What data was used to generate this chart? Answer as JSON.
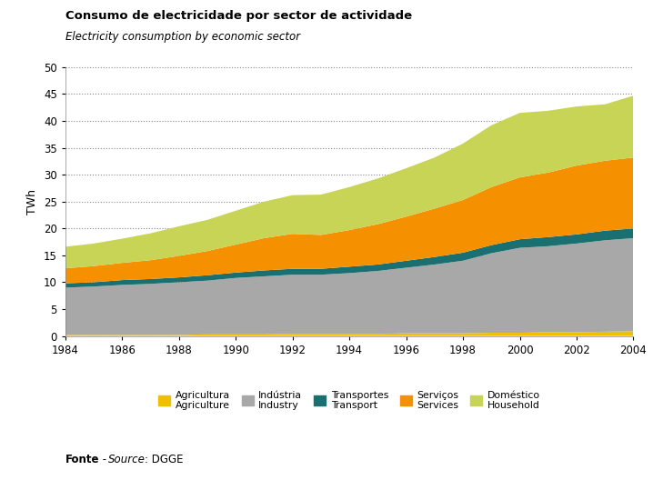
{
  "title": "Consumo de electricidade por sector de actividade",
  "subtitle": "Electricity consumption by economic sector",
  "ylabel": "TWh",
  "source_name": "DGGE",
  "years": [
    1984,
    1985,
    1986,
    1987,
    1988,
    1989,
    1990,
    1991,
    1992,
    1993,
    1994,
    1995,
    1996,
    1997,
    1998,
    1999,
    2000,
    2001,
    2002,
    2003,
    2004
  ],
  "agriculture": [
    0.2,
    0.2,
    0.2,
    0.2,
    0.2,
    0.3,
    0.3,
    0.3,
    0.4,
    0.4,
    0.4,
    0.4,
    0.5,
    0.5,
    0.5,
    0.6,
    0.6,
    0.7,
    0.7,
    0.8,
    0.9
  ],
  "industry": [
    8.8,
    9.0,
    9.3,
    9.5,
    9.8,
    10.0,
    10.5,
    10.8,
    11.0,
    11.0,
    11.3,
    11.7,
    12.2,
    12.8,
    13.5,
    14.8,
    15.8,
    16.0,
    16.5,
    17.0,
    17.3
  ],
  "transport": [
    0.8,
    0.8,
    0.9,
    0.9,
    0.9,
    1.0,
    1.0,
    1.1,
    1.1,
    1.1,
    1.2,
    1.2,
    1.3,
    1.4,
    1.5,
    1.5,
    1.6,
    1.7,
    1.7,
    1.8,
    1.8
  ],
  "services": [
    2.8,
    3.0,
    3.2,
    3.5,
    4.0,
    4.5,
    5.2,
    6.0,
    6.5,
    6.3,
    6.8,
    7.5,
    8.2,
    9.0,
    9.8,
    10.8,
    11.5,
    12.0,
    12.8,
    13.0,
    13.2
  ],
  "household": [
    4.0,
    4.2,
    4.5,
    5.0,
    5.5,
    5.8,
    6.3,
    6.8,
    7.2,
    7.5,
    8.0,
    8.5,
    9.0,
    9.5,
    10.5,
    11.5,
    12.0,
    11.5,
    11.0,
    10.5,
    11.5
  ],
  "color_agriculture": "#f0c000",
  "color_industry": "#a8a8a8",
  "color_transport": "#1a7070",
  "color_services": "#f59000",
  "color_household": "#c8d455",
  "ylim": [
    0,
    50
  ],
  "yticks": [
    0,
    5,
    10,
    15,
    20,
    25,
    30,
    35,
    40,
    45,
    50
  ],
  "xticks": [
    1984,
    1986,
    1988,
    1990,
    1992,
    1994,
    1996,
    1998,
    2000,
    2002,
    2004
  ],
  "legend_labels_pt": [
    "Agricultura",
    "Indústria",
    "Transportes",
    "Serviços",
    "Doméstico"
  ],
  "legend_labels_en": [
    "Agriculture",
    "Industry",
    "Transport",
    "Services",
    "Household"
  ],
  "background_color": "#ffffff"
}
